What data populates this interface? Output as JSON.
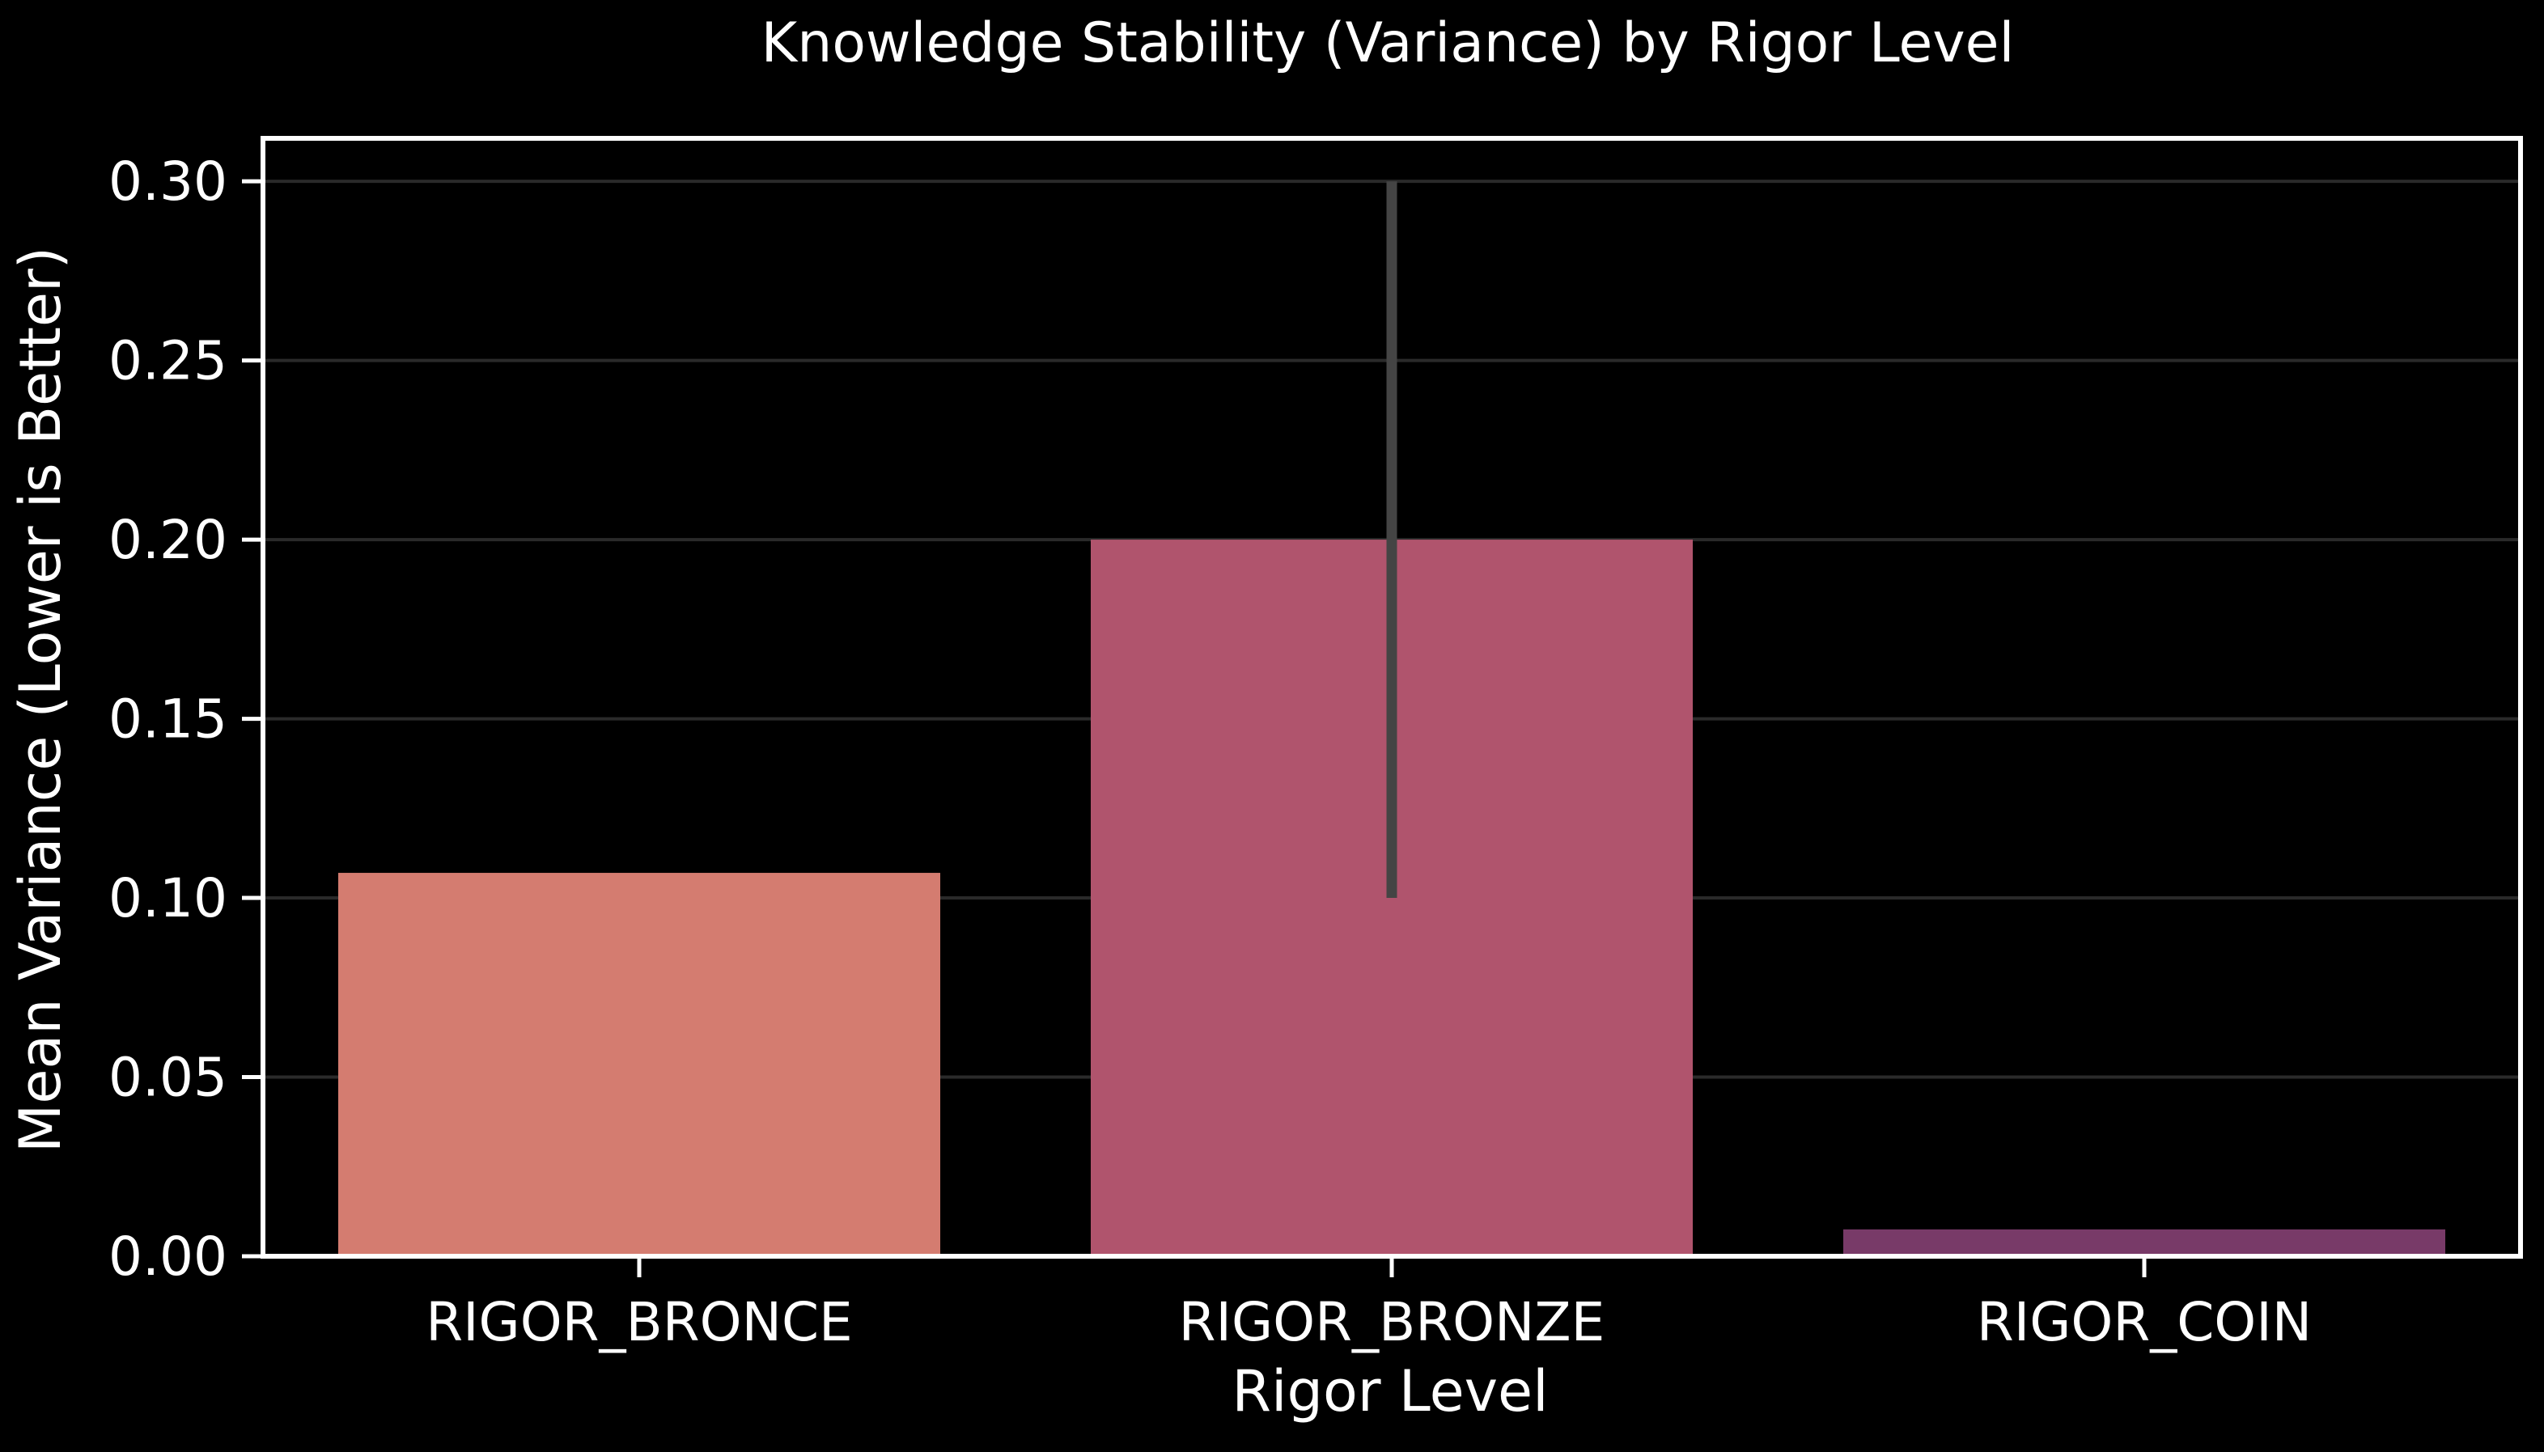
{
  "chart_data": {
    "type": "bar",
    "title": "Knowledge Stability (Variance) by Rigor Level",
    "xlabel": "Rigor Level",
    "ylabel": "Mean Variance (Lower is Better)",
    "categories": [
      "RIGOR_BRONCE",
      "RIGOR_BRONZE",
      "RIGOR_COIN"
    ],
    "values": [
      0.107,
      0.2,
      0.0075
    ],
    "error_bars": [
      null,
      [
        0.1,
        0.3
      ],
      null
    ],
    "ylim": [
      0,
      0.312
    ],
    "yticks": [
      0.0,
      0.05,
      0.1,
      0.15,
      0.2,
      0.25,
      0.3
    ],
    "ytick_labels": [
      "0.00",
      "0.05",
      "0.10",
      "0.15",
      "0.20",
      "0.25",
      "0.30"
    ],
    "grid": "horizontal",
    "colors": {
      "background": "#000000",
      "axes": "#ffffff",
      "text": "#ffffff",
      "grid": "#2a2a2a",
      "error_bar": "#444444",
      "bars": [
        "#d47c70",
        "#b0546d",
        "#783a68"
      ]
    }
  }
}
